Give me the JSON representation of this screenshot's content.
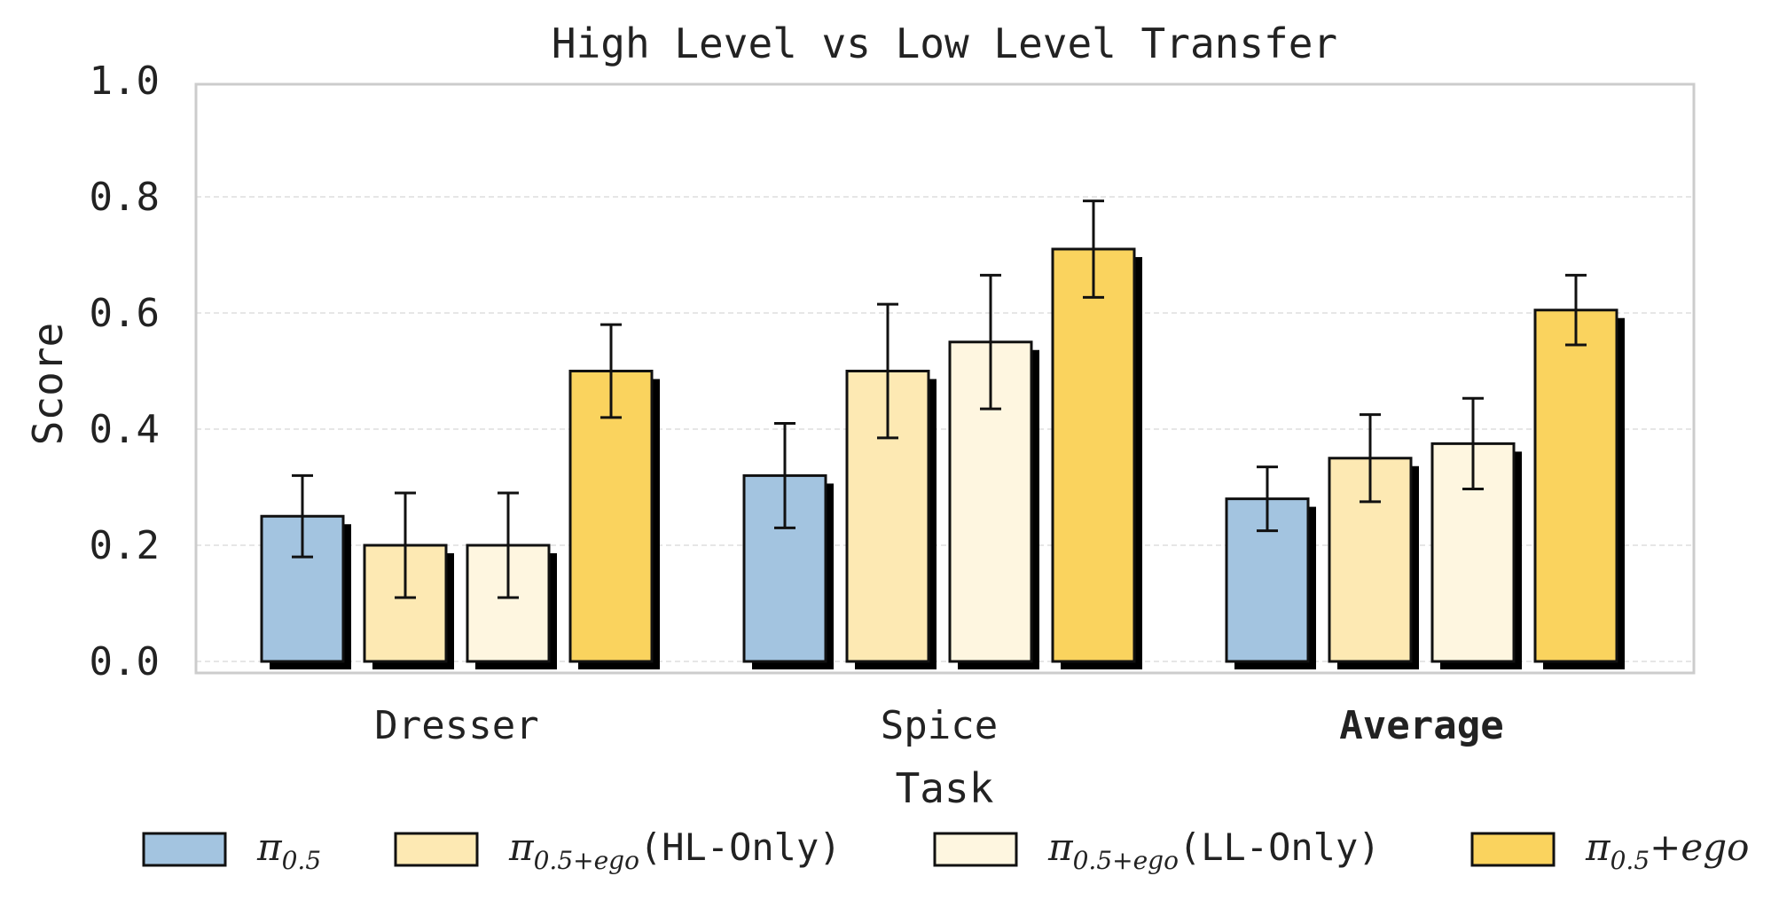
{
  "chart_data": {
    "type": "bar",
    "title": "High Level vs Low Level Transfer",
    "xlabel": "Task",
    "ylabel": "Score",
    "ylim": [
      0,
      1.0
    ],
    "yticks": [
      "0.0",
      "0.2",
      "0.4",
      "0.6",
      "0.8",
      "1.0"
    ],
    "categories": [
      "Dresser",
      "Spice",
      "Average"
    ],
    "bold_category": "Average",
    "grid": true,
    "legend_position": "bottom",
    "series": [
      {
        "name": "π0.5",
        "legend": {
          "base": "π",
          "sub": "0.5",
          "suffix": ""
        },
        "color": "#a3c4e0",
        "values": [
          0.25,
          0.32,
          0.28
        ],
        "errors": [
          0.07,
          0.09,
          0.055
        ]
      },
      {
        "name": "π0.5+ego(HL-Only)",
        "legend": {
          "base": "π",
          "sub": "0.5+ego",
          "suffix": "(HL-Only)"
        },
        "color": "#fde9b3",
        "values": [
          0.2,
          0.5,
          0.35
        ],
        "errors": [
          0.09,
          0.115,
          0.075
        ]
      },
      {
        "name": "π0.5+ego(LL-Only)",
        "legend": {
          "base": "π",
          "sub": "0.5+ego",
          "suffix": "(LL-Only)"
        },
        "color": "#fef6e0",
        "values": [
          0.2,
          0.55,
          0.375
        ],
        "errors": [
          0.09,
          0.115,
          0.078
        ]
      },
      {
        "name": "π0.5+ego",
        "legend": {
          "base": "π",
          "sub": "0.5",
          "suffix": "+ego"
        },
        "color": "#fad35e",
        "values": [
          0.5,
          0.71,
          0.605
        ],
        "errors": [
          0.08,
          0.083,
          0.06
        ]
      }
    ]
  }
}
